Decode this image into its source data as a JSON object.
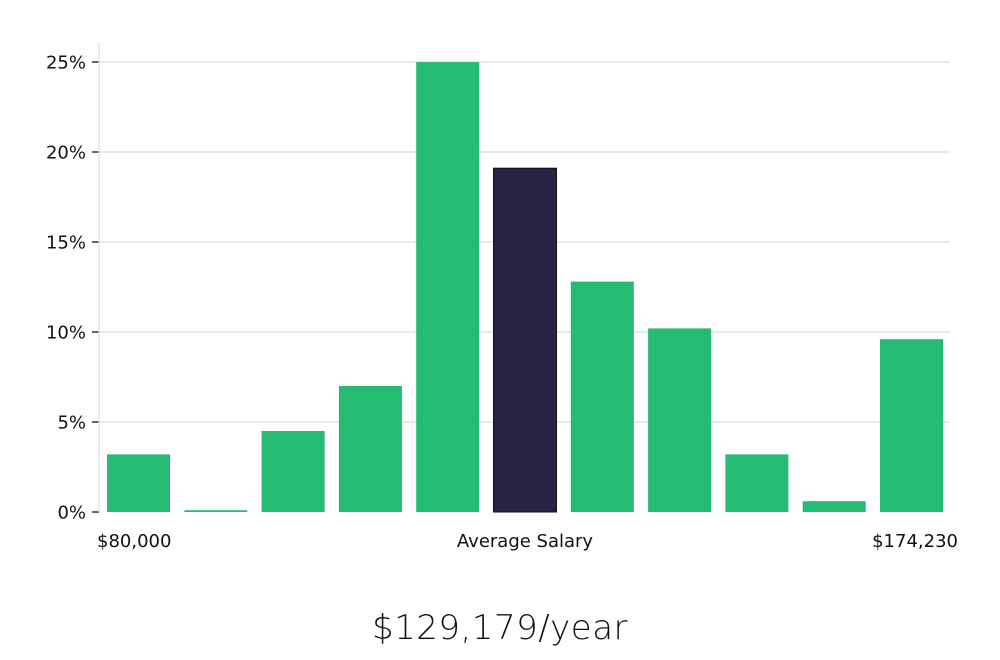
{
  "chart_data": {
    "type": "bar",
    "title": "",
    "xlabel": "Average Salary",
    "ylabel": "",
    "x_min_label": "$80,000",
    "x_max_label": "$174,230",
    "ylim": [
      0,
      25
    ],
    "yticks": [
      0,
      5,
      10,
      15,
      20,
      25
    ],
    "ytick_labels": [
      "0%",
      "5%",
      "10%",
      "15%",
      "20%",
      "25%"
    ],
    "values": [
      3.2,
      0.1,
      4.5,
      7.0,
      25.0,
      19.1,
      12.8,
      10.2,
      3.2,
      0.6,
      9.6
    ],
    "highlight_index": 5,
    "bar_color": "#26bb75",
    "highlight_color": "#272446",
    "grid": true
  },
  "summary": {
    "average_salary": "$129,179/year"
  }
}
